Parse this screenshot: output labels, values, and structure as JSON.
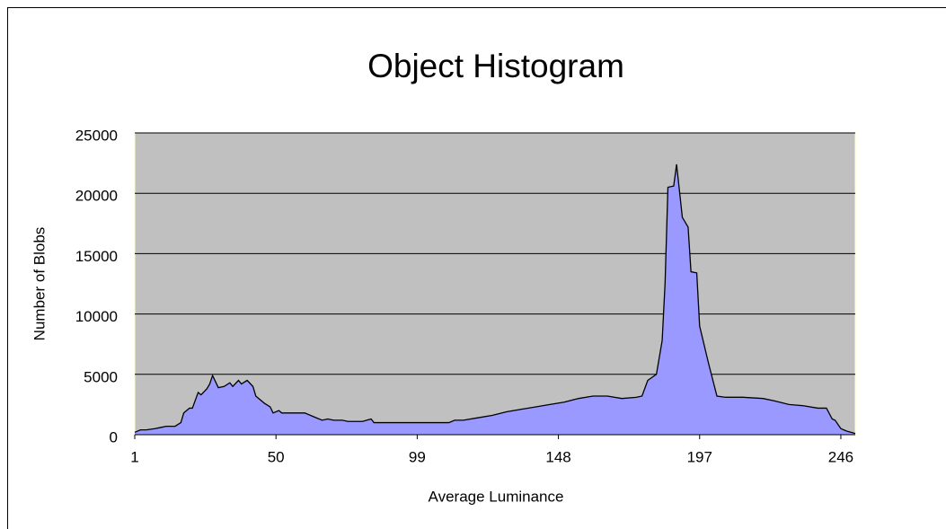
{
  "chart_data": {
    "type": "area",
    "title": "Object Histogram",
    "x_label": "Average Luminance",
    "y_label": "Number of Blobs",
    "x": [
      1,
      3,
      5,
      8,
      10,
      12,
      15,
      17,
      18,
      20,
      21,
      23,
      24,
      26,
      27,
      28,
      30,
      32,
      34,
      35,
      37,
      38,
      40,
      42,
      43,
      46,
      48,
      49,
      51,
      52,
      55,
      60,
      63,
      66,
      68,
      70,
      73,
      75,
      80,
      83,
      84,
      86,
      95,
      105,
      110,
      112,
      115,
      120,
      125,
      130,
      135,
      140,
      145,
      150,
      155,
      160,
      165,
      170,
      175,
      177,
      179,
      182,
      184,
      185,
      186,
      188,
      189,
      191,
      193,
      194,
      196,
      197,
      200,
      203,
      206,
      212,
      219,
      223,
      228,
      233,
      238,
      241,
      243,
      244,
      246,
      248,
      251
    ],
    "values": [
      200,
      400,
      400,
      500,
      600,
      700,
      700,
      1000,
      1800,
      2200,
      2200,
      3500,
      3300,
      3800,
      4200,
      4900,
      3900,
      4000,
      4300,
      4000,
      4500,
      4200,
      4500,
      4000,
      3200,
      2600,
      2300,
      1800,
      2000,
      1800,
      1800,
      1800,
      1500,
      1200,
      1300,
      1200,
      1200,
      1100,
      1100,
      1300,
      1000,
      1000,
      1000,
      1000,
      1000,
      1200,
      1200,
      1400,
      1600,
      1900,
      2100,
      2300,
      2500,
      2700,
      3000,
      3200,
      3200,
      3000,
      3100,
      3200,
      4500,
      5000,
      7800,
      12500,
      20500,
      20600,
      22400,
      18000,
      17200,
      13500,
      13400,
      9000,
      6000,
      3200,
      3100,
      3100,
      3000,
      2800,
      2500,
      2400,
      2200,
      2200,
      1300,
      1200,
      500,
      300,
      100
    ],
    "color": "#9999ff",
    "xlim": [
      1,
      251
    ],
    "xticks": [
      1,
      50,
      99,
      148,
      197,
      246
    ],
    "ylim": [
      0,
      25000
    ],
    "yticks": [
      0,
      5000,
      10000,
      15000,
      20000,
      25000
    ],
    "grid": true
  }
}
